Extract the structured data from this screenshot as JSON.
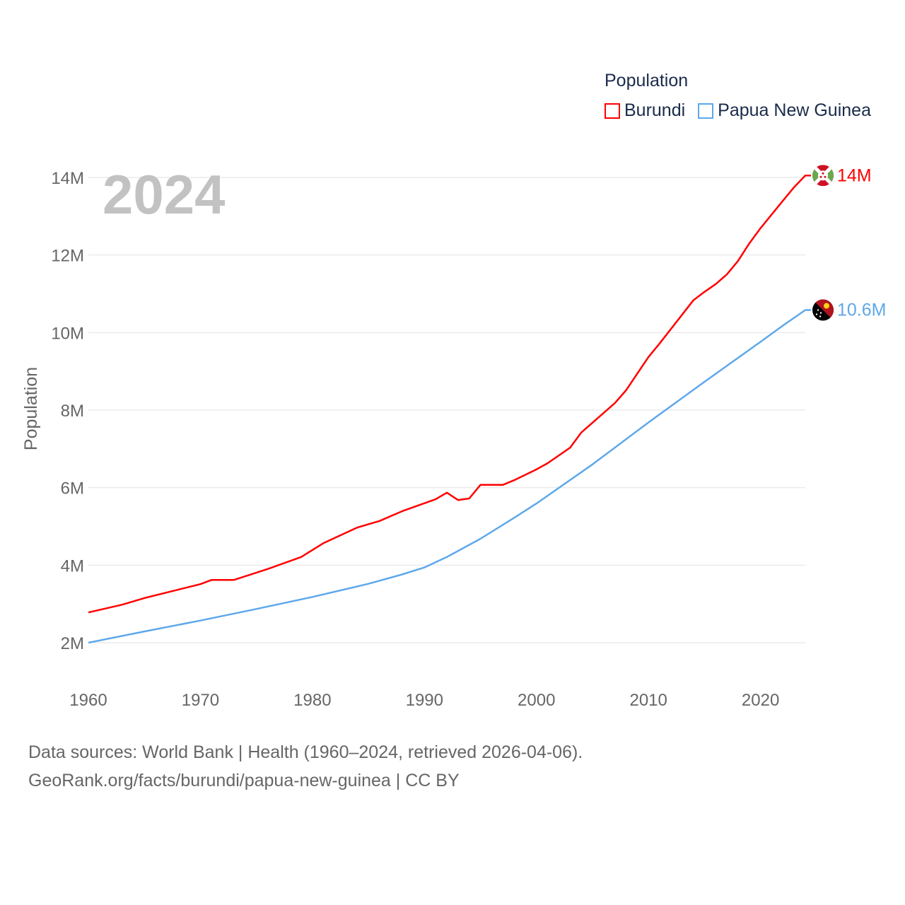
{
  "chart_data": {
    "type": "line",
    "title": "Population",
    "year_watermark": "2024",
    "ylabel": "Population",
    "xlabel": "",
    "xlim": [
      1960,
      2024
    ],
    "ylim": [
      2,
      14
    ],
    "x_ticks": [
      1960,
      1970,
      1980,
      1990,
      2000,
      2010,
      2020
    ],
    "y_ticks": [
      2,
      4,
      6,
      8,
      10,
      12,
      14
    ],
    "y_tick_labels": [
      "2M",
      "4M",
      "6M",
      "8M",
      "10M",
      "12M",
      "14M"
    ],
    "grid": true,
    "legend_position": "top-right",
    "series": [
      {
        "name": "Burundi",
        "color": "#ff0000",
        "end_label": "14M",
        "flag": "burundi-flag",
        "points": [
          [
            1960,
            2.78
          ],
          [
            1963,
            2.98
          ],
          [
            1965,
            3.15
          ],
          [
            1970,
            3.51
          ],
          [
            1971,
            3.62
          ],
          [
            1973,
            3.62
          ],
          [
            1976,
            3.9
          ],
          [
            1979,
            4.21
          ],
          [
            1981,
            4.57
          ],
          [
            1984,
            4.97
          ],
          [
            1986,
            5.14
          ],
          [
            1988,
            5.39
          ],
          [
            1991,
            5.7
          ],
          [
            1992,
            5.87
          ],
          [
            1993,
            5.68
          ],
          [
            1994,
            5.72
          ],
          [
            1995,
            6.07
          ],
          [
            1997,
            6.07
          ],
          [
            1998,
            6.19
          ],
          [
            2000,
            6.47
          ],
          [
            2001,
            6.63
          ],
          [
            2003,
            7.03
          ],
          [
            2004,
            7.42
          ],
          [
            2007,
            8.18
          ],
          [
            2008,
            8.51
          ],
          [
            2010,
            9.37
          ],
          [
            2011,
            9.72
          ],
          [
            2014,
            10.83
          ],
          [
            2015,
            11.05
          ],
          [
            2016,
            11.25
          ],
          [
            2017,
            11.5
          ],
          [
            2018,
            11.85
          ],
          [
            2019,
            12.3
          ],
          [
            2020,
            12.69
          ],
          [
            2022,
            13.4
          ],
          [
            2023,
            13.75
          ],
          [
            2024,
            14.05
          ]
        ]
      },
      {
        "name": "Papua New Guinea",
        "color": "#5ea8ea",
        "end_label": "10.6M",
        "flag": "papua-new-guinea-flag",
        "points": [
          [
            1960,
            2.0
          ],
          [
            1965,
            2.29
          ],
          [
            1970,
            2.57
          ],
          [
            1975,
            2.87
          ],
          [
            1980,
            3.18
          ],
          [
            1985,
            3.52
          ],
          [
            1988,
            3.76
          ],
          [
            1990,
            3.94
          ],
          [
            1992,
            4.21
          ],
          [
            1995,
            4.68
          ],
          [
            1998,
            5.22
          ],
          [
            2000,
            5.59
          ],
          [
            2005,
            6.6
          ],
          [
            2010,
            7.68
          ],
          [
            2015,
            8.73
          ],
          [
            2020,
            9.76
          ],
          [
            2022,
            10.18
          ],
          [
            2024,
            10.58
          ]
        ]
      }
    ]
  },
  "legend": {
    "title": "Population",
    "items": [
      "Burundi",
      "Papua New Guinea"
    ]
  },
  "footer": {
    "line1": "Data sources: World Bank | Health (1960–2024, retrieved 2026-04-06).",
    "line2": "GeoRank.org/facts/burundi/papua-new-guinea | CC BY"
  }
}
